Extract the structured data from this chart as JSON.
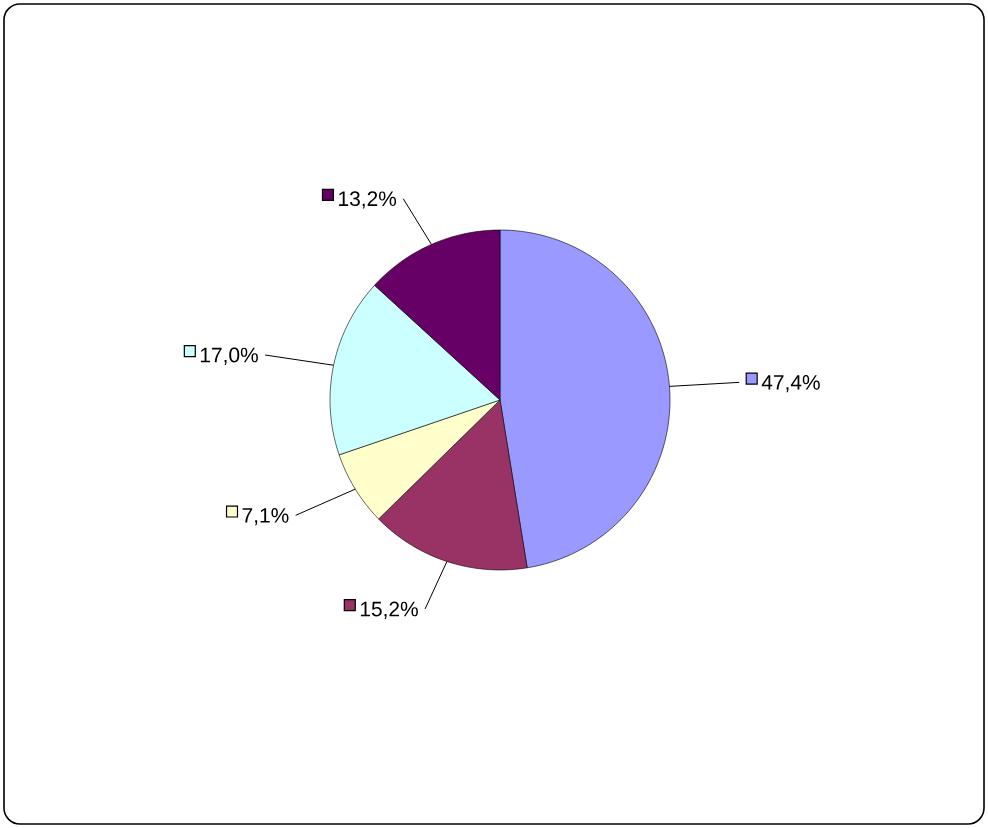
{
  "chart_data": {
    "type": "pie",
    "categories": [
      null,
      null,
      null,
      null,
      null
    ],
    "values": [
      47.4,
      15.2,
      7.1,
      17.0,
      13.2
    ],
    "colors": [
      "#9999ff",
      "#993366",
      "#ffffcc",
      "#ccffff",
      "#660066"
    ],
    "value_labels": [
      "47,4%",
      "15,2%",
      "7,1%",
      "17,0%",
      "13,2%"
    ]
  }
}
